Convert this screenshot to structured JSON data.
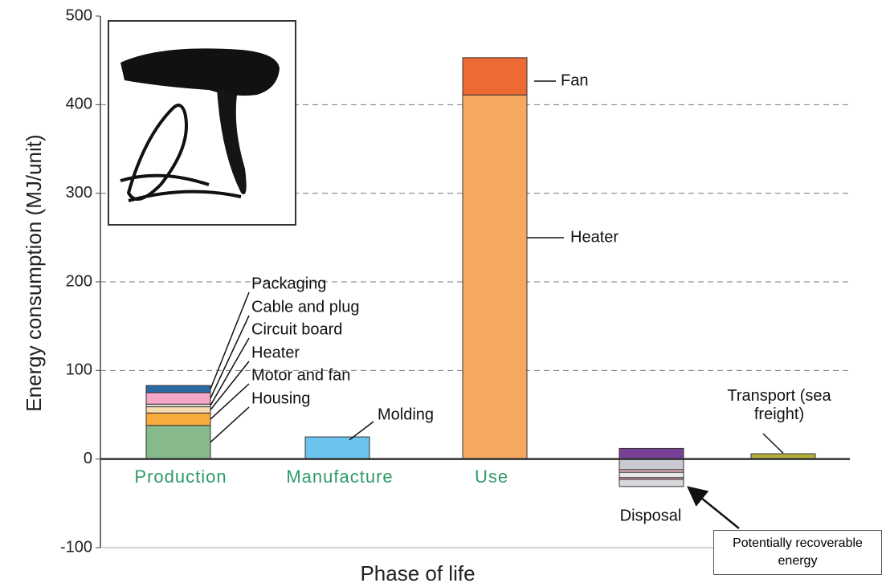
{
  "chart_data": {
    "type": "bar",
    "stacked": true,
    "xlabel": "Phase of life",
    "ylabel": "Energy consumption (MJ/unit)",
    "categories": [
      "Production",
      "Manufacture",
      "Use",
      "Disposal",
      null
    ],
    "ylim": [
      -100,
      500
    ],
    "yticks": [
      -100,
      0,
      100,
      200,
      300,
      400,
      500
    ],
    "grid": true,
    "series": [
      {
        "name": "Housing",
        "color": "#86b98c",
        "values": [
          38,
          null,
          null,
          null,
          null
        ]
      },
      {
        "name": "Motor and fan",
        "color": "#f6ab3c",
        "values": [
          14,
          null,
          null,
          null,
          null
        ]
      },
      {
        "name": "Heater",
        "color": "#f8dbaf",
        "values": [
          7,
          null,
          null,
          null,
          null
        ]
      },
      {
        "name": "Circuit board",
        "color": "#e9e2dc",
        "values": [
          3,
          null,
          null,
          null,
          null
        ]
      },
      {
        "name": "Cable and plug",
        "color": "#f4a7c9",
        "values": [
          13,
          null,
          null,
          null,
          null
        ]
      },
      {
        "name": "Packaging",
        "color": "#2b6ba4",
        "values": [
          8,
          null,
          null,
          null,
          null
        ]
      },
      {
        "name": "Molding",
        "color": "#6cc4ee",
        "values": [
          null,
          25,
          null,
          null,
          null
        ]
      },
      {
        "name": "Heater",
        "color": "#f5a85f",
        "values": [
          null,
          null,
          411,
          null,
          null
        ]
      },
      {
        "name": "Fan",
        "color": "#ee6a34",
        "values": [
          null,
          null,
          42,
          null,
          null
        ]
      },
      {
        "color": "#7a3f96",
        "values": [
          null,
          null,
          null,
          12,
          null
        ]
      },
      {
        "color": "#c9c9d2",
        "values": [
          null,
          null,
          null,
          -12,
          null
        ]
      },
      {
        "color": "#f0b6c6",
        "values": [
          null,
          null,
          null,
          -3,
          null
        ]
      },
      {
        "color": "#e7e7eb",
        "values": [
          null,
          null,
          null,
          -6,
          null
        ]
      },
      {
        "color": "#e6a0b2",
        "values": [
          null,
          null,
          null,
          -2,
          null
        ]
      },
      {
        "color": "#d9d9dd",
        "values": [
          null,
          null,
          null,
          -8,
          null
        ]
      },
      {
        "name": "Transport (sea freight)",
        "color": "#b4b03a",
        "values": [
          null,
          null,
          null,
          null,
          6
        ]
      }
    ],
    "annotation": "Potentially recoverable energy"
  }
}
